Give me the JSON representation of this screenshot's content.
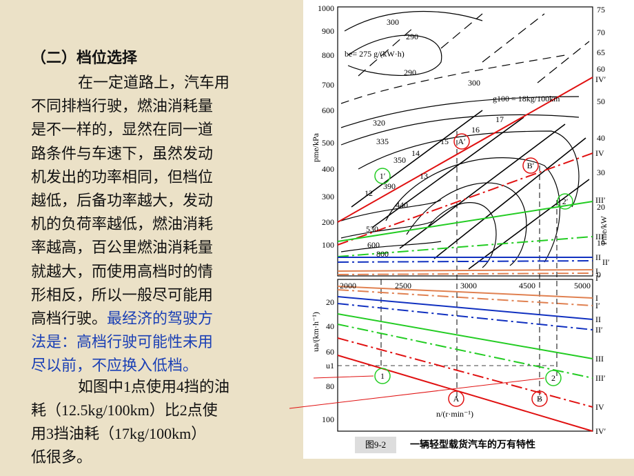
{
  "slide": {
    "heading": "（二）档位选择",
    "body_lines": [
      "在一定道路上，汽车用",
      "不同排档行驶，燃油消耗量",
      "是不一样的，显然在同一道",
      "路条件与车速下，虽然发动",
      "机发出的功率相同，但档位",
      "越低，后备功率越大，发动",
      "机的负荷率越低，燃油消耗",
      "率越高，百公里燃油消耗量",
      "就越大，而使用高档时的情",
      "形相反，所以一般尽可能用",
      "高档行驶。"
    ],
    "emphasis_lines": [
      "最经济的驾驶方",
      "法是：高档行驶可能性未用",
      "尽以前，不应换入低档。"
    ],
    "example_lines": [
      "如图中1点使用4挡的油",
      "耗（12.5kg/100km）比2点使",
      "用3挡油耗（17kg/100km）",
      "低很多。"
    ]
  },
  "figure": {
    "caption_number": "图9-2",
    "caption_title": "一辆轻型载货汽车的万有特性",
    "upper_left_axis_label": "pme/kPa",
    "upper_right_axis_label": "Pme/kW",
    "lower_left_axis_label": "ua/(km·h⁻¹)",
    "x_axis_label": "n/(r·min⁻¹)",
    "upper_left_ticks": [
      "1000",
      "900",
      "800",
      "700",
      "600",
      "500",
      "400",
      "300",
      "200",
      "100"
    ],
    "upper_right_ticks": [
      "75",
      "70",
      "65",
      "60",
      "50",
      "40",
      "30",
      "20",
      "10",
      "0"
    ],
    "x_ticks": [
      "2000",
      "2500",
      "3000",
      "4500",
      "5000"
    ],
    "lower_left_ticks": [
      "20",
      "40",
      "60",
      "u1",
      "80",
      "100"
    ],
    "gear_labels_upper": [
      "IV′",
      "IV",
      "III′",
      "III",
      "II",
      "II′",
      "I",
      "I′"
    ],
    "gear_labels_lower": [
      "I",
      "I′",
      "II",
      "II′",
      "III",
      "III′",
      "IV",
      "IV′"
    ],
    "curve_labels": [
      "300",
      "290",
      "be= 275 g/(kW·h)",
      "290",
      "300",
      "g100 = 18kg/100km",
      "320",
      "17",
      "16",
      "15",
      "335",
      "350",
      "14",
      "13",
      "12",
      "390",
      "440",
      "530",
      "600",
      "800"
    ],
    "point_labels": [
      "A′",
      "B′",
      "1′",
      "2′",
      "1",
      "2",
      "A",
      "B"
    ]
  }
}
